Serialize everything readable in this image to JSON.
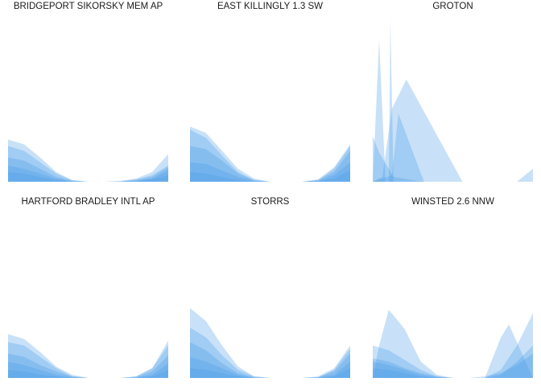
{
  "chart_data": {
    "type": "area",
    "layout": "small-multiples, 3 columns x 2 rows",
    "x_range": [
      0,
      1
    ],
    "y_range": [
      0,
      1
    ],
    "axes_visible": false,
    "grid": false,
    "legend": "none",
    "fill_color": "#4a9be8",
    "fill_opacity": 0.3,
    "panels": [
      {
        "title": "BRIDGEPORT SIKORSKY MEM AP",
        "series": [
          {
            "x": [
              0,
              0.1,
              0.2,
              0.3,
              0.4,
              0.5,
              0.6,
              0.7,
              0.8,
              0.9,
              1
            ],
            "y": [
              0.26,
              0.23,
              0.15,
              0.06,
              0.01,
              0,
              0,
              0.005,
              0.02,
              0.06,
              0.17
            ]
          },
          {
            "x": [
              0,
              0.1,
              0.2,
              0.3,
              0.4,
              0.5,
              0.6,
              0.7,
              0.8,
              0.9,
              1
            ],
            "y": [
              0.22,
              0.19,
              0.12,
              0.05,
              0.01,
              0,
              0,
              0.002,
              0.015,
              0.04,
              0.1
            ]
          },
          {
            "x": [
              0,
              0.1,
              0.2,
              0.3,
              0.4,
              0.5,
              0.6,
              0.7,
              0.8,
              0.9,
              1
            ],
            "y": [
              0.15,
              0.13,
              0.08,
              0.03,
              0.005,
              0,
              0,
              0.002,
              0.01,
              0.03,
              0.09
            ]
          },
          {
            "x": [
              0,
              0.1,
              0.2,
              0.3,
              0.4,
              0.5,
              0.6,
              0.7,
              0.8,
              0.9,
              1
            ],
            "y": [
              0.1,
              0.08,
              0.05,
              0.02,
              0.003,
              0,
              0,
              0,
              0.005,
              0.02,
              0.07
            ]
          },
          {
            "x": [
              0,
              0.1,
              0.2,
              0.3,
              0.4,
              0.5,
              0.6,
              0.7,
              0.8,
              0.9,
              1
            ],
            "y": [
              0.06,
              0.05,
              0.03,
              0.01,
              0,
              0,
              0,
              0,
              0.003,
              0.015,
              0.04
            ]
          }
        ]
      },
      {
        "title": "EAST KILLINGLY 1.3 SW",
        "series": [
          {
            "x": [
              0,
              0.1,
              0.2,
              0.3,
              0.4,
              0.5,
              0.6,
              0.7,
              0.8,
              0.9,
              1
            ],
            "y": [
              0.34,
              0.3,
              0.19,
              0.08,
              0.02,
              0,
              0,
              0,
              0.01,
              0.08,
              0.22
            ]
          },
          {
            "x": [
              0,
              0.1,
              0.2,
              0.3,
              0.4,
              0.5,
              0.6,
              0.7,
              0.8,
              0.9,
              1
            ],
            "y": [
              0.32,
              0.27,
              0.16,
              0.06,
              0.01,
              0,
              0,
              0,
              0.015,
              0.09,
              0.23
            ]
          },
          {
            "x": [
              0,
              0.1,
              0.2,
              0.3,
              0.4,
              0.5,
              0.6,
              0.7,
              0.8,
              0.9,
              1
            ],
            "y": [
              0.22,
              0.2,
              0.13,
              0.05,
              0.01,
              0,
              0,
              0,
              0.01,
              0.06,
              0.19
            ]
          },
          {
            "x": [
              0,
              0.1,
              0.2,
              0.3,
              0.4,
              0.5,
              0.6,
              0.7,
              0.8,
              0.9,
              1
            ],
            "y": [
              0.12,
              0.11,
              0.07,
              0.03,
              0.005,
              0,
              0,
              0,
              0.005,
              0.04,
              0.12
            ]
          },
          {
            "x": [
              0,
              0.1,
              0.2,
              0.3,
              0.4,
              0.5,
              0.6,
              0.7,
              0.8,
              0.9,
              1
            ],
            "y": [
              0.06,
              0.05,
              0.03,
              0.01,
              0,
              0,
              0,
              0,
              0.002,
              0.02,
              0.07
            ]
          }
        ]
      },
      {
        "title": "GROTON",
        "series": [
          {
            "x": [
              0,
              0.04,
              0.08,
              0.12,
              1
            ],
            "y": [
              0,
              0.87,
              0,
              0,
              0
            ]
          },
          {
            "x": [
              0,
              0.1,
              0.11,
              0.13,
              1
            ],
            "y": [
              0,
              0,
              1.0,
              0,
              0
            ]
          },
          {
            "x": [
              0,
              0.06,
              0.12,
              0.21,
              0.56,
              1
            ],
            "y": [
              0,
              0.03,
              0.45,
              0.63,
              0,
              0
            ]
          },
          {
            "x": [
              0,
              0.04,
              0.13,
              0.3,
              1
            ],
            "y": [
              0.28,
              0.18,
              0.03,
              0,
              0
            ]
          },
          {
            "x": [
              0,
              0.12,
              0.16,
              0.32,
              1
            ],
            "y": [
              0,
              0.04,
              0.42,
              0,
              0
            ]
          },
          {
            "x": [
              0,
              0.9,
              1
            ],
            "y": [
              0,
              0,
              0.08
            ]
          }
        ]
      },
      {
        "title": "HARTFORD BRADLEY INTL AP",
        "series": [
          {
            "x": [
              0,
              0.1,
              0.2,
              0.3,
              0.4,
              0.5,
              0.6,
              0.7,
              0.8,
              0.9,
              1
            ],
            "y": [
              0.27,
              0.24,
              0.16,
              0.07,
              0.02,
              0,
              0,
              0,
              0.01,
              0.06,
              0.2
            ]
          },
          {
            "x": [
              0,
              0.1,
              0.2,
              0.3,
              0.4,
              0.5,
              0.6,
              0.7,
              0.8,
              0.9,
              1
            ],
            "y": [
              0.22,
              0.2,
              0.13,
              0.06,
              0.01,
              0,
              0,
              0,
              0.01,
              0.06,
              0.23
            ]
          },
          {
            "x": [
              0,
              0.1,
              0.2,
              0.3,
              0.4,
              0.5,
              0.6,
              0.7,
              0.8,
              0.9,
              1
            ],
            "y": [
              0.15,
              0.13,
              0.08,
              0.04,
              0.01,
              0,
              0,
              0,
              0.005,
              0.04,
              0.14
            ]
          },
          {
            "x": [
              0,
              0.1,
              0.2,
              0.3,
              0.4,
              0.5,
              0.6,
              0.7,
              0.8,
              0.9,
              1
            ],
            "y": [
              0.1,
              0.08,
              0.05,
              0.02,
              0.005,
              0,
              0,
              0,
              0.003,
              0.02,
              0.09
            ]
          },
          {
            "x": [
              0,
              0.1,
              0.2,
              0.3,
              0.4,
              0.5,
              0.6,
              0.7,
              0.8,
              0.9,
              1
            ],
            "y": [
              0.05,
              0.04,
              0.02,
              0.01,
              0,
              0,
              0,
              0,
              0,
              0.01,
              0.05
            ]
          }
        ]
      },
      {
        "title": "STORRS",
        "series": [
          {
            "x": [
              0,
              0.1,
              0.2,
              0.3,
              0.4,
              0.5,
              0.6,
              0.7,
              0.8,
              0.9,
              1
            ],
            "y": [
              0.43,
              0.35,
              0.2,
              0.07,
              0.01,
              0,
              0,
              0,
              0.01,
              0.06,
              0.2
            ]
          },
          {
            "x": [
              0,
              0.1,
              0.2,
              0.3,
              0.4,
              0.5,
              0.6,
              0.7,
              0.8,
              0.9,
              1
            ],
            "y": [
              0.31,
              0.25,
              0.14,
              0.05,
              0.01,
              0,
              0,
              0,
              0.005,
              0.05,
              0.18
            ]
          },
          {
            "x": [
              0,
              0.1,
              0.2,
              0.3,
              0.4,
              0.5,
              0.6,
              0.7,
              0.8,
              0.9,
              1
            ],
            "y": [
              0.22,
              0.17,
              0.09,
              0.03,
              0.005,
              0,
              0,
              0,
              0.004,
              0.04,
              0.15
            ]
          },
          {
            "x": [
              0,
              0.1,
              0.2,
              0.3,
              0.4,
              0.5,
              0.6,
              0.7,
              0.8,
              0.9,
              1
            ],
            "y": [
              0.13,
              0.1,
              0.06,
              0.02,
              0,
              0,
              0,
              0,
              0.003,
              0.02,
              0.1
            ]
          },
          {
            "x": [
              0,
              0.1,
              0.2,
              0.3,
              0.4,
              0.5,
              0.6,
              0.7,
              0.8,
              0.9,
              1
            ],
            "y": [
              0.06,
              0.05,
              0.03,
              0.01,
              0,
              0,
              0,
              0,
              0,
              0.01,
              0.06
            ]
          }
        ]
      },
      {
        "title": "WINSTED 2.6 NNW",
        "series": [
          {
            "x": [
              0,
              0.04,
              0.1,
              0.2,
              0.3,
              0.4,
              0.5,
              1
            ],
            "y": [
              0,
              0.2,
              0.42,
              0.3,
              0.1,
              0.02,
              0,
              0
            ]
          },
          {
            "x": [
              0,
              0.1,
              0.2,
              0.3,
              0.4,
              0.5,
              0.6,
              0.7,
              0.8,
              0.85,
              0.9,
              1
            ],
            "y": [
              0.2,
              0.17,
              0.11,
              0.05,
              0.01,
              0,
              0,
              0,
              0.25,
              0.33,
              0.22,
              0
            ]
          },
          {
            "x": [
              0,
              0.1,
              0.2,
              0.3,
              0.4,
              0.5,
              0.6,
              0.7,
              0.8,
              0.9,
              1
            ],
            "y": [
              0.12,
              0.1,
              0.06,
              0.03,
              0.01,
              0,
              0,
              0,
              0.05,
              0.2,
              0.4
            ]
          },
          {
            "x": [
              0,
              0.1,
              0.2,
              0.3,
              0.4,
              0.5,
              0.6,
              0.7,
              0.8,
              0.9,
              1
            ],
            "y": [
              0.06,
              0.05,
              0.03,
              0.01,
              0,
              0,
              0,
              0,
              0.02,
              0.1,
              0.2
            ]
          },
          {
            "x": [
              0,
              0.1,
              0.2,
              0.3,
              0.4,
              0.5,
              0.6,
              0.7,
              0.8,
              0.9,
              1
            ],
            "y": [
              0.1,
              0.08,
              0.05,
              0.02,
              0.005,
              0,
              0,
              0.01,
              0.03,
              0.08,
              0.15
            ]
          }
        ]
      }
    ]
  }
}
